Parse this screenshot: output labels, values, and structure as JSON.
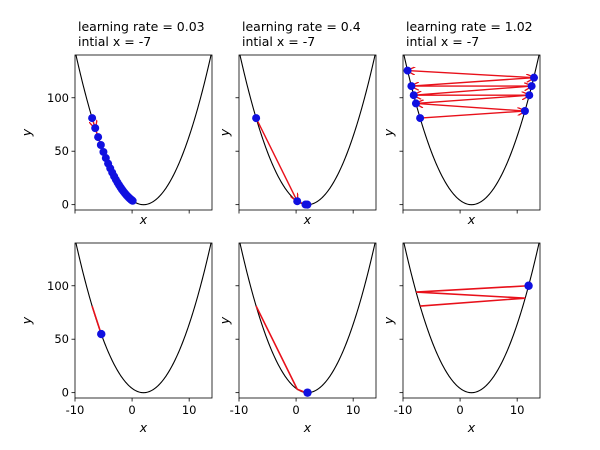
{
  "chart_data": [
    {
      "type": "line",
      "title_lines": [
        "learning rate = 0.03",
        " intial x = -7"
      ],
      "xlabel": "x",
      "ylabel": "y",
      "xlim": [
        -10,
        14
      ],
      "ylim": [
        -5,
        140
      ],
      "function": "y = (x - 2)^2",
      "render": "path",
      "x": [
        -7,
        -6.46,
        -5.95,
        -5.47,
        -5.02,
        -4.6,
        -4.2,
        -3.83,
        -3.48,
        -3.15,
        -2.84,
        -2.55,
        -2.28,
        -2.02,
        -1.78,
        -1.55,
        -1.34,
        -1.14,
        -0.95,
        -0.77,
        -0.6,
        -0.44,
        -0.29,
        -0.15,
        -0.02,
        0.1
      ],
      "y": [
        81,
        71.6,
        63.2,
        55.8,
        49.3,
        43.6,
        38.4,
        34.0,
        30.0,
        26.5,
        23.4,
        20.7,
        18.3,
        16.2,
        14.3,
        12.6,
        11.2,
        9.9,
        8.7,
        7.7,
        6.8,
        6.0,
        5.2,
        4.6,
        4.1,
        3.6
      ]
    },
    {
      "type": "line",
      "title_lines": [
        "learning rate = 0.4",
        " intial x = -7"
      ],
      "xlabel": "x",
      "ylabel": "y",
      "xlim": [
        -10,
        14
      ],
      "ylim": [
        -5,
        140
      ],
      "function": "y = (x - 2)^2",
      "render": "path",
      "x": [
        -7,
        0.2,
        1.64,
        1.93,
        1.99
      ],
      "y": [
        81,
        3.24,
        0.13,
        0.005,
        0.0
      ]
    },
    {
      "type": "line",
      "title_lines": [
        "learning rate = 1.02",
        " intial x = -7"
      ],
      "xlabel": "x",
      "ylabel": "y",
      "xlim": [
        -10,
        14
      ],
      "ylim": [
        -5,
        140
      ],
      "function": "y = (x - 2)^2",
      "render": "path",
      "x": [
        -7,
        11.36,
        -7.73,
        12.12,
        -8.12,
        12.53,
        -8.53,
        12.95,
        -9.2
      ],
      "y": [
        81,
        87.6,
        94.7,
        102.4,
        102.4,
        110.9,
        110.9,
        118.8,
        125.4
      ]
    },
    {
      "type": "line",
      "title_lines": [],
      "xlabel": "x",
      "ylabel": "y",
      "xlim": [
        -10,
        14
      ],
      "ylim": [
        -5,
        140
      ],
      "function": "y = (x - 2)^2",
      "render": "trail",
      "x": [
        -7,
        -5.4
      ],
      "y": [
        81,
        54.8
      ]
    },
    {
      "type": "line",
      "title_lines": [],
      "xlabel": "x",
      "ylabel": "y",
      "xlim": [
        -10,
        14
      ],
      "ylim": [
        -5,
        140
      ],
      "function": "y = (x - 2)^2",
      "render": "trail",
      "x": [
        -7,
        0.2,
        1.64,
        1.93,
        2.0
      ],
      "y": [
        81,
        3.24,
        0.13,
        0.005,
        0.0
      ]
    },
    {
      "type": "line",
      "title_lines": [],
      "xlabel": "x",
      "ylabel": "y",
      "xlim": [
        -10,
        14
      ],
      "ylim": [
        -5,
        140
      ],
      "function": "y = (x - 2)^2",
      "render": "trail",
      "x": [
        -7,
        11.4,
        -7.7,
        12.0
      ],
      "y": [
        81,
        88.4,
        94.1,
        100
      ]
    }
  ]
}
